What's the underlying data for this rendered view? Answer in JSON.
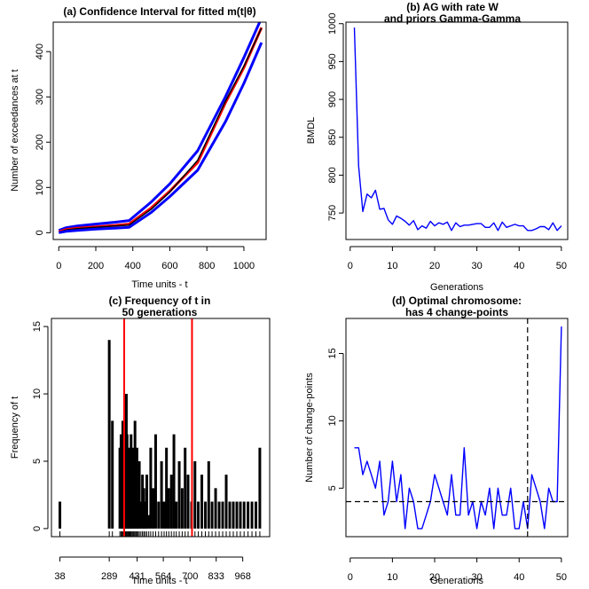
{
  "chart_data": [
    {
      "id": "a",
      "type": "line",
      "title": "(a) Confidence Interval for fitted m(t|θ)",
      "xlabel": "Time units - t",
      "ylabel": "Number of exceedances at t",
      "xlim": [
        -30,
        1120
      ],
      "ylim": [
        -15,
        465
      ],
      "xticks": [
        0,
        200,
        400,
        600,
        800,
        1000
      ],
      "yticks": [
        0,
        100,
        200,
        300,
        400
      ],
      "series": [
        {
          "name": "upper",
          "color": "#0000ff",
          "width": 3,
          "x": [
            0,
            40,
            100,
            200,
            300,
            380,
            500,
            600,
            750,
            900,
            1000,
            1085
          ],
          "y": [
            5,
            11,
            15,
            19,
            23,
            27,
            68,
            108,
            181,
            300,
            387,
            465
          ]
        },
        {
          "name": "fitted",
          "color": "#ff0000",
          "width": 3,
          "x": [
            0,
            40,
            100,
            200,
            300,
            380,
            500,
            600,
            750,
            900,
            1000,
            1095
          ],
          "y": [
            2,
            7,
            10,
            13,
            16,
            19,
            55,
            92,
            155,
            287,
            365,
            453
          ]
        },
        {
          "name": "empirical",
          "color": "#000000",
          "width": 1.5,
          "x": [
            0,
            40,
            100,
            200,
            300,
            380,
            500,
            600,
            750,
            900,
            1000,
            1095
          ],
          "y": [
            1,
            6,
            9,
            12,
            15,
            17,
            52,
            90,
            160,
            290,
            368,
            452
          ]
        },
        {
          "name": "lower",
          "color": "#0000ff",
          "width": 3,
          "x": [
            0,
            40,
            100,
            200,
            300,
            380,
            500,
            600,
            750,
            900,
            1000,
            1095
          ],
          "y": [
            0,
            3,
            5,
            8,
            10,
            12,
            45,
            80,
            138,
            245,
            330,
            420
          ]
        }
      ]
    },
    {
      "id": "b",
      "type": "line",
      "title": "(b) AG with rate W",
      "subtitle": "and priors Gamma-Gamma",
      "xlabel": "Generations",
      "ylabel": "BMDL",
      "xlim": [
        -1,
        51.5
      ],
      "ylim": [
        715,
        1002
      ],
      "xticks": [
        0,
        10,
        20,
        30,
        40,
        50
      ],
      "yticks": [
        750,
        800,
        850,
        900,
        950,
        1000
      ],
      "series": [
        {
          "name": "BMDL",
          "color": "#0000ff",
          "width": 1.4,
          "x": [
            1,
            2,
            3,
            4,
            5,
            6,
            7,
            8,
            9,
            10,
            11,
            12,
            13,
            14,
            15,
            16,
            17,
            18,
            19,
            20,
            21,
            22,
            23,
            24,
            25,
            26,
            27,
            28,
            29,
            30,
            31,
            32,
            33,
            34,
            35,
            36,
            37,
            38,
            39,
            40,
            41,
            42,
            43,
            44,
            45,
            46,
            47,
            48,
            49,
            50
          ],
          "y": [
            995,
            812,
            752,
            775,
            770,
            780,
            755,
            756,
            741,
            735,
            746,
            743,
            739,
            734,
            740,
            728,
            733,
            730,
            739,
            733,
            737,
            735,
            738,
            727,
            737,
            732,
            734,
            734,
            735,
            736,
            736,
            731,
            731,
            737,
            727,
            738,
            731,
            733,
            735,
            733,
            733,
            727,
            727,
            729,
            732,
            732,
            728,
            737,
            727,
            733
          ]
        }
      ]
    },
    {
      "id": "c",
      "type": "bar",
      "title": "(c) Frequency of t in",
      "subtitle": "50 generations",
      "xlabel": "Time units - t",
      "ylabel": "Frequency of t",
      "xlim": [
        -5,
        1105
      ],
      "ylim": [
        -0.6,
        15.6
      ],
      "xticks": [
        38,
        289,
        431,
        564,
        700,
        833,
        968
      ],
      "yticks": [
        0,
        5,
        10,
        15
      ],
      "vlines": [
        {
          "x": 365,
          "color": "#ff0000"
        },
        {
          "x": 710,
          "color": "#ff0000"
        }
      ],
      "bars": {
        "x": [
          38,
          289,
          305,
          343,
          349,
          353,
          358,
          363,
          368,
          372,
          376,
          380,
          384,
          388,
          392,
          396,
          400,
          405,
          410,
          415,
          420,
          425,
          430,
          436,
          442,
          450,
          458,
          465,
          472,
          480,
          490,
          500,
          512,
          525,
          540,
          555,
          568,
          580,
          592,
          605,
          618,
          630,
          645,
          660,
          675,
          690,
          708,
          725,
          742,
          760,
          778,
          795,
          812,
          830,
          848,
          866,
          884,
          902,
          920,
          938,
          956,
          975,
          995,
          1015,
          1035,
          1055
        ],
        "values": [
          2,
          14,
          8,
          6,
          7,
          5,
          8,
          3,
          8,
          8,
          10,
          7,
          5,
          6,
          4,
          3,
          7,
          2,
          6,
          4,
          8,
          3,
          6,
          2,
          5,
          2,
          4,
          3,
          2,
          4,
          1,
          6,
          3,
          7,
          2,
          5,
          2,
          6,
          3,
          4,
          7,
          2,
          5,
          3,
          6,
          4,
          2,
          5,
          2,
          4,
          2,
          5,
          2,
          3,
          2,
          2,
          4,
          2,
          2,
          2,
          2,
          2,
          2,
          2,
          2,
          6
        ]
      }
    },
    {
      "id": "d",
      "type": "line",
      "title": "(d) Optimal chromosome:",
      "subtitle": "has 4 change-points",
      "xlabel": "Generations",
      "ylabel": "Number of change-points",
      "xlim": [
        -1,
        51.5
      ],
      "ylim": [
        1.4,
        17.6
      ],
      "xticks": [
        0,
        10,
        20,
        30,
        40,
        50
      ],
      "yticks": [
        5,
        10,
        15
      ],
      "hline": {
        "y": 4,
        "color": "#000000",
        "dashed": true
      },
      "vline": {
        "x": 42,
        "color": "#000000",
        "dashed": true
      },
      "series": [
        {
          "name": "change-points",
          "color": "#0000ff",
          "width": 1.4,
          "x": [
            1,
            2,
            3,
            4,
            5,
            6,
            7,
            8,
            9,
            10,
            11,
            12,
            13,
            14,
            15,
            16,
            17,
            18,
            19,
            20,
            21,
            22,
            23,
            24,
            25,
            26,
            27,
            28,
            29,
            30,
            31,
            32,
            33,
            34,
            35,
            36,
            37,
            38,
            39,
            40,
            41,
            42,
            43,
            44,
            45,
            46,
            47,
            48,
            49,
            50
          ],
          "y": [
            8,
            8,
            6,
            7,
            6,
            5,
            7,
            3,
            4,
            7,
            4,
            6,
            2,
            5,
            4,
            2,
            2,
            3,
            4,
            6,
            5,
            4,
            3,
            6,
            3,
            3,
            8,
            3,
            4,
            2,
            4,
            3,
            5,
            2,
            5,
            3,
            3,
            5,
            2,
            2,
            4,
            2,
            6,
            5,
            4,
            2,
            5,
            4,
            4,
            17
          ]
        }
      ]
    }
  ]
}
